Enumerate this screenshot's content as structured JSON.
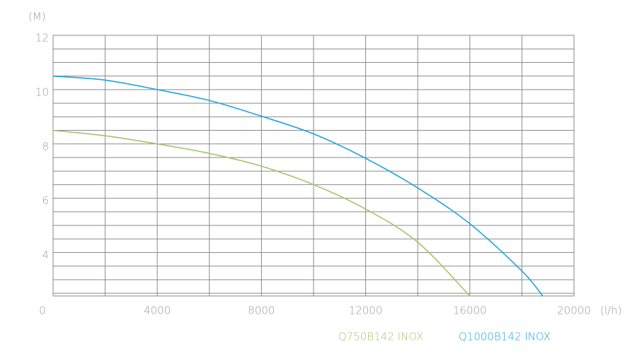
{
  "chart_data": {
    "type": "line",
    "y_label": "(M)",
    "x_label": "(l/h)",
    "x": [
      0,
      2000,
      4000,
      6000,
      8000,
      10000,
      12000,
      14000,
      16000,
      18000,
      18800
    ],
    "series": [
      {
        "name": "Q750B142 INOX",
        "color": "#a9c26c",
        "values": [
          8.5,
          8.3,
          8.0,
          7.65,
          7.18,
          6.5,
          5.6,
          4.38,
          2.4,
          null,
          null
        ]
      },
      {
        "name": "Q1000B142 INOX",
        "color": "#1fa3da",
        "values": [
          10.5,
          10.35,
          10.0,
          9.6,
          9.02,
          8.37,
          7.47,
          6.38,
          5.06,
          3.32,
          2.4
        ]
      }
    ],
    "xlim": [
      0,
      20000
    ],
    "ylim": [
      2.4,
      12
    ],
    "xticks": [
      0,
      4000,
      8000,
      12000,
      16000,
      20000
    ],
    "yticks": [
      4,
      6,
      8,
      10,
      12
    ],
    "grid_x": [
      0,
      2000,
      4000,
      6000,
      8000,
      10000,
      12000,
      14000,
      16000,
      18000,
      20000
    ],
    "grid_y": [
      2.5,
      3,
      3.5,
      4,
      4.5,
      5,
      5.5,
      6,
      6.5,
      7,
      7.5,
      8,
      8.5,
      9,
      9.5,
      10,
      10.5,
      11,
      11.5,
      12
    ]
  }
}
